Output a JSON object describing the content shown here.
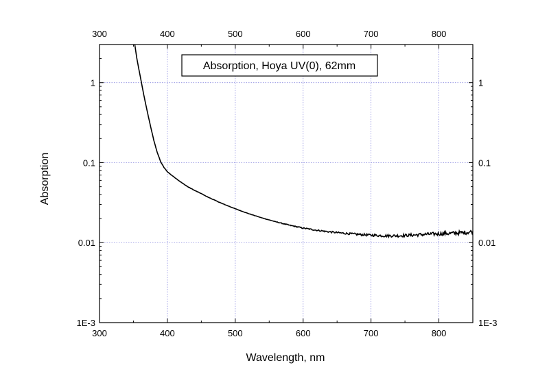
{
  "chart_data": {
    "type": "line",
    "title": "",
    "legend_box": "Absorption, Hoya UV(0), 62mm",
    "xlabel": "Wavelength, nm",
    "ylabel": "Absorption",
    "xlim": [
      300,
      850
    ],
    "ylim": [
      0.001,
      3
    ],
    "yscale": "log",
    "grid": true,
    "x_ticks": [
      300,
      400,
      500,
      600,
      700,
      800
    ],
    "x_tick_labels": [
      "300",
      "400",
      "500",
      "600",
      "700",
      "800"
    ],
    "y_ticks": [
      0.001,
      0.01,
      0.1,
      1
    ],
    "y_tick_labels": [
      "1E-3",
      "0.01",
      "0.1",
      "1"
    ],
    "series": [
      {
        "name": "",
        "color": "#000000",
        "x": [
          352,
          355,
          360,
          365,
          370,
          375,
          380,
          385,
          390,
          395,
          400,
          405,
          410,
          420,
          430,
          440,
          450,
          460,
          480,
          500,
          520,
          540,
          560,
          580,
          600,
          620,
          640,
          660,
          680,
          700,
          720,
          740,
          760,
          780,
          800,
          820,
          840,
          850
        ],
        "y": [
          3.0,
          2.0,
          1.2,
          0.72,
          0.45,
          0.29,
          0.19,
          0.135,
          0.103,
          0.087,
          0.077,
          0.071,
          0.066,
          0.057,
          0.05,
          0.045,
          0.041,
          0.037,
          0.031,
          0.0265,
          0.023,
          0.0203,
          0.0182,
          0.0165,
          0.0152,
          0.0143,
          0.0136,
          0.0131,
          0.0127,
          0.0124,
          0.0122,
          0.0122,
          0.0124,
          0.0127,
          0.0129,
          0.0131,
          0.0134,
          0.0138
        ]
      }
    ]
  }
}
